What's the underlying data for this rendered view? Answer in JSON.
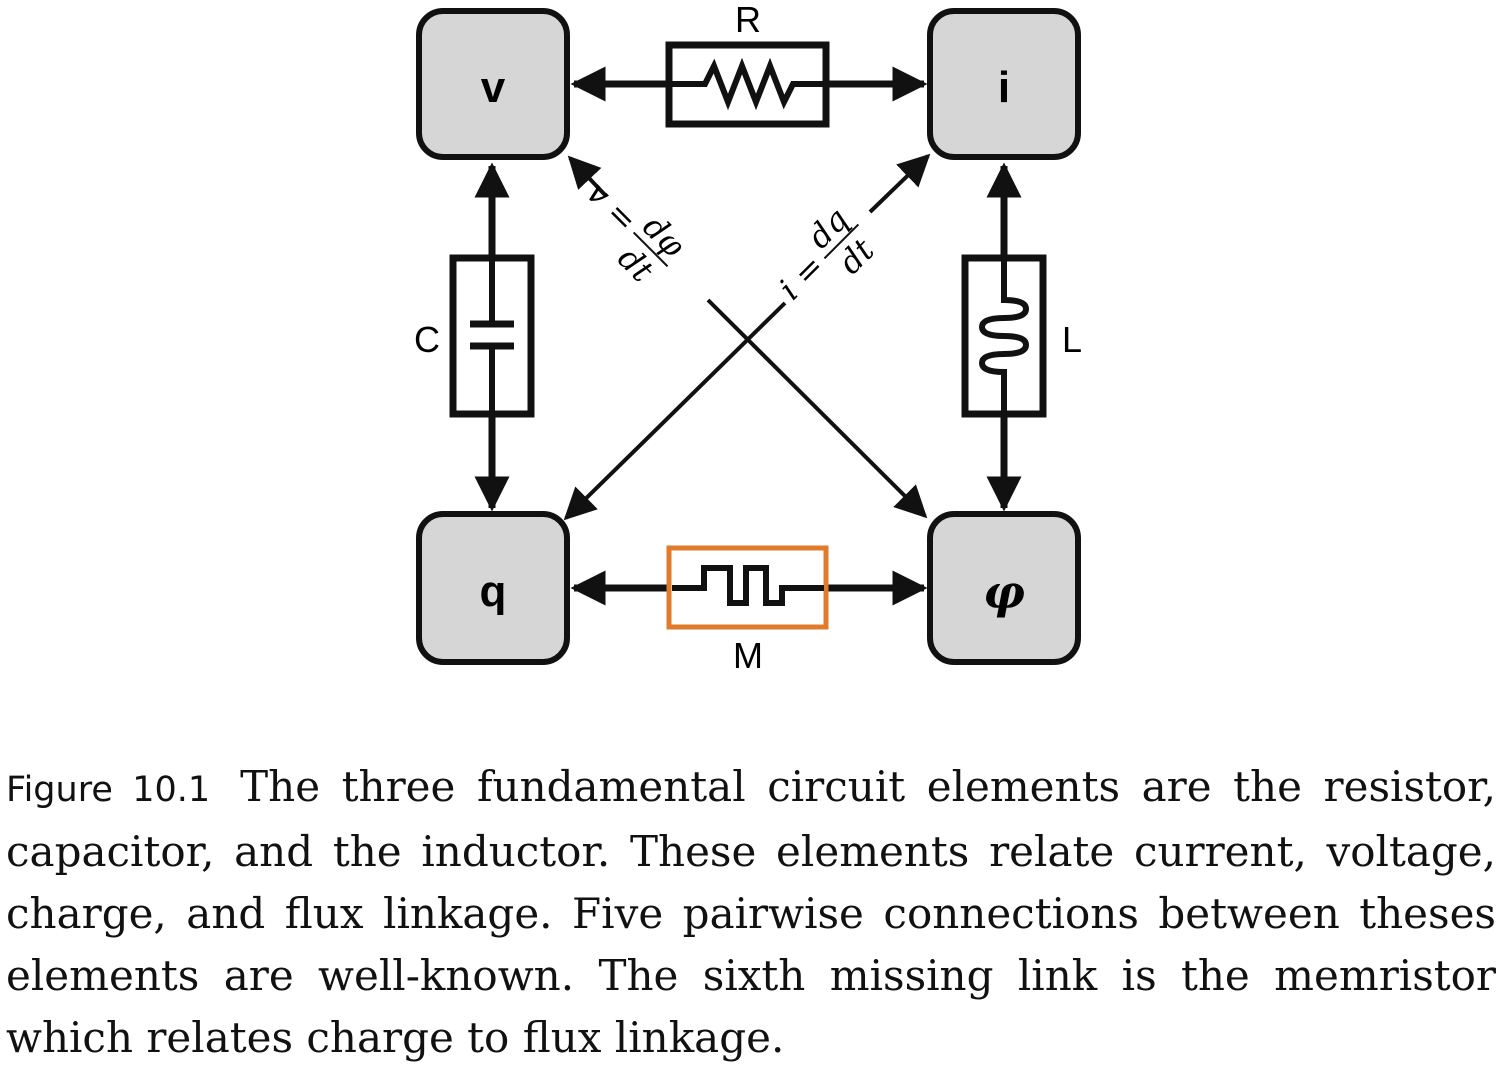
{
  "nodes": {
    "v": "v",
    "i": "i",
    "q": "q",
    "phi": "φ"
  },
  "elements": {
    "resistor": "R",
    "capacitor": "C",
    "inductor": "L",
    "memristor": "M"
  },
  "relations": {
    "v_lhs": "v =",
    "v_num": "dφ",
    "v_den": "dt",
    "i_lhs": "i =",
    "i_num": "dq",
    "i_den": "dt"
  },
  "colors": {
    "node_fill": "#d6d6d6",
    "stroke": "#111111",
    "memristor_highlight": "#e07b2e"
  },
  "caption": {
    "label": "Figure 10.1",
    "text": "The three fundamental circuit elements are the resistor, capacitor, and the inductor. These elements relate current, voltage, charge, and flux linkage. Five pairwise connections between theses elements are well-known. The sixth missing link is the memristor which relates charge to flux linkage."
  }
}
